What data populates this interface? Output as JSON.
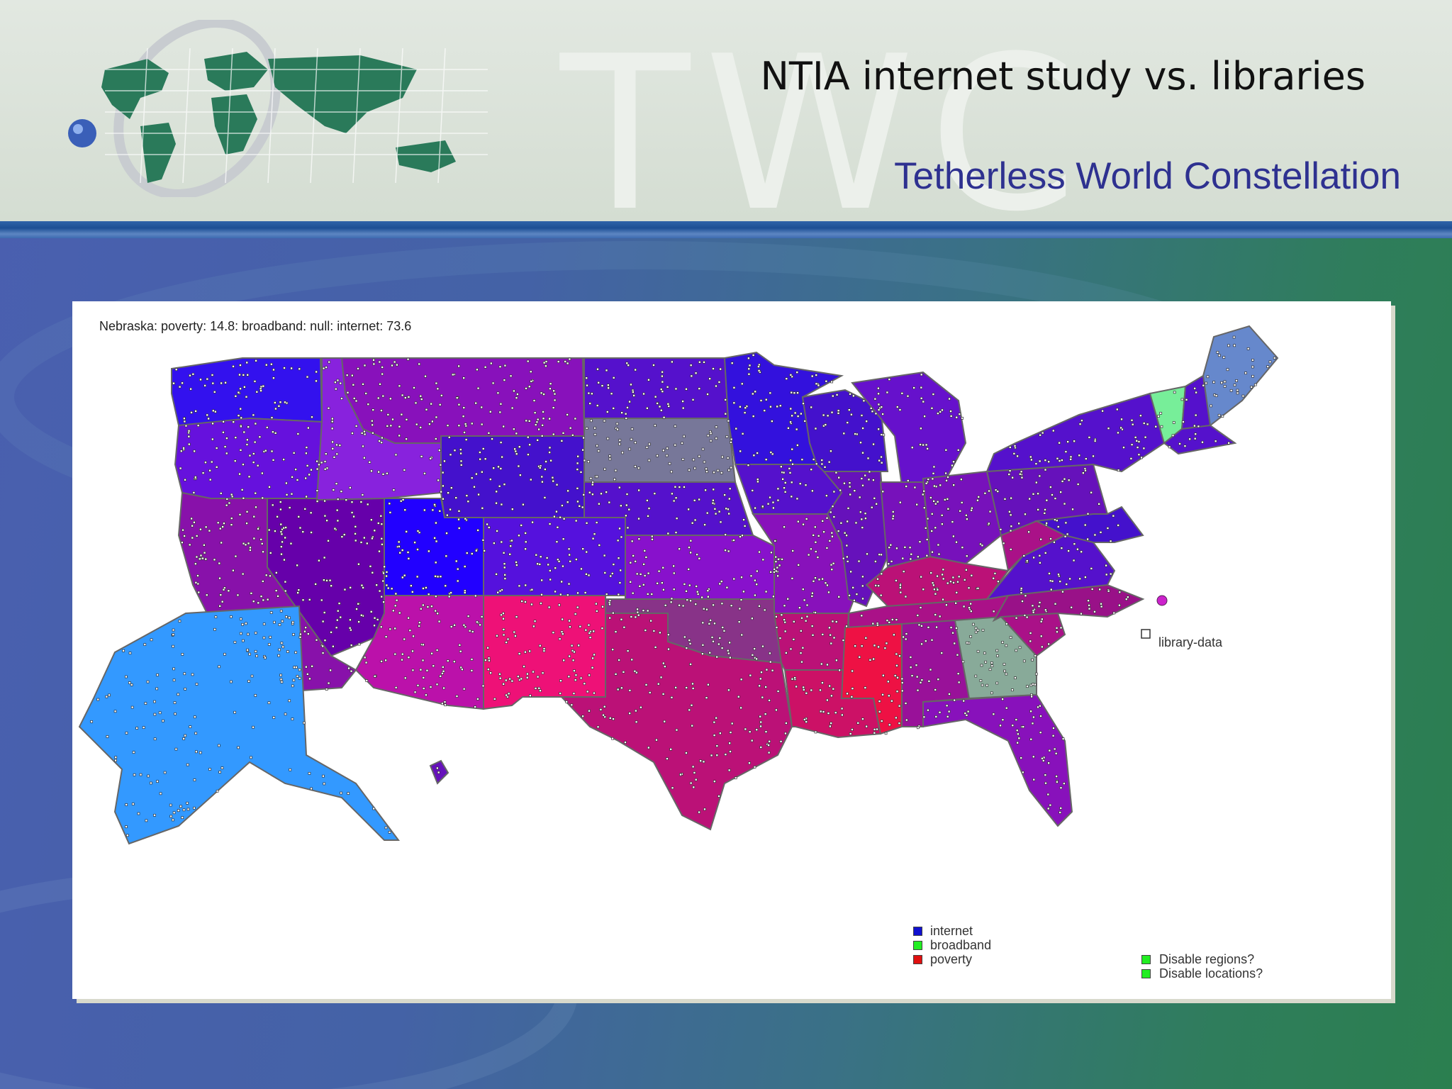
{
  "slide": {
    "title": "NTIA internet study vs. libraries",
    "subtitle": "Tetherless World Constellation",
    "watermark": "TWC"
  },
  "map": {
    "info_line": "Nebraska: poverty: 14.8: broadband: null: internet: 73.6",
    "library_layer_label": "library-data",
    "legend": [
      {
        "label": "internet",
        "color": "#1010d0"
      },
      {
        "label": "broadband",
        "color": "#22ee22"
      },
      {
        "label": "poverty",
        "color": "#e01010"
      }
    ],
    "controls": [
      {
        "label": "Disable regions?",
        "color": "#22ee22"
      },
      {
        "label": "Disable locations?",
        "color": "#22ee22"
      }
    ],
    "region_colors": {
      "washington": "#3311ee",
      "oregon": "#6611dd",
      "california": "#8811aa",
      "nevada": "#6600aa",
      "idaho": "#8822dd",
      "montana": "#8811bb",
      "wyoming": "#4411cc",
      "utah": "#2200ff",
      "colorado": "#5511dd",
      "arizona": "#bb11aa",
      "new_mexico": "#ee1177",
      "north_dakota": "#5511cc",
      "south_dakota": "#777799",
      "nebraska": "#5511cc",
      "kansas": "#8811cc",
      "oklahoma": "#883388",
      "texas": "#bb1177",
      "minnesota": "#3311dd",
      "iowa": "#5511cc",
      "missouri": "#8811bb",
      "arkansas": "#bb1177",
      "louisiana": "#cc1166",
      "wisconsin": "#4411cc",
      "illinois": "#6611bb",
      "michigan": "#6611cc",
      "indiana": "#7711bb",
      "ohio": "#7711bb",
      "kentucky": "#bb1177",
      "tennessee": "#aa1188",
      "mississippi": "#ee1144",
      "alabama": "#991199",
      "georgia": "#88aa99",
      "florida": "#8811bb",
      "south_carolina": "#aa1188",
      "north_carolina": "#991188",
      "virginia": "#5511cc",
      "west_virginia": "#aa1188",
      "pennsylvania": "#6611bb",
      "new_york": "#5511cc",
      "vermont": "#77ee99",
      "new_hampshire": "#5511cc",
      "maine": "#6688cc",
      "massachusetts": "#5511cc",
      "maryland": "#4411cc",
      "alaska": "#3399ff",
      "hawaii": "#6611bb",
      "dc_marker": "#cc22cc"
    }
  }
}
